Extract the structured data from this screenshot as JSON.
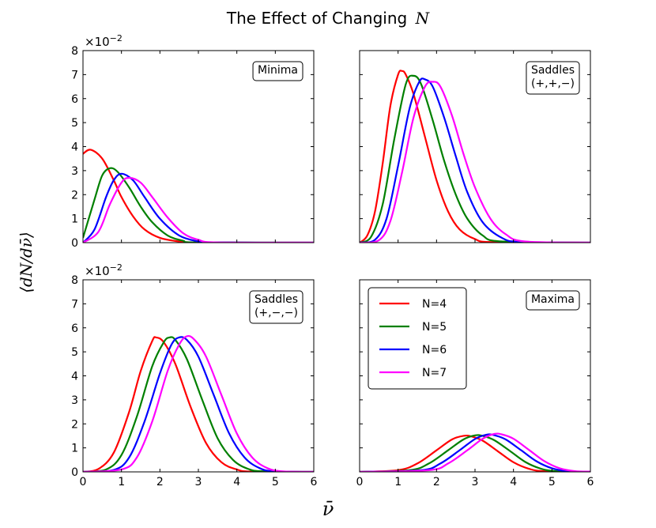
{
  "figure": {
    "title": "The Effect of Changing",
    "title_var": "N",
    "xlabel": "ν̄",
    "ylabel": "⟨dN/dν̄⟩",
    "y_exponent_base": "×10",
    "y_exponent_power": "−2"
  },
  "colors": {
    "N=4": "#ff0000",
    "N=5": "#008000",
    "N=6": "#0000ff",
    "N=7": "#ff00ff"
  },
  "chart_data": [
    {
      "type": "line",
      "panel": "top-left",
      "label": "Minima",
      "label_lines": [
        "Minima"
      ],
      "show_exponent": true,
      "xlim": [
        0,
        6
      ],
      "ylim": [
        0,
        8
      ],
      "xticks": [
        "",
        "",
        "",
        "",
        "",
        "",
        ""
      ],
      "yticks": [
        "0",
        "1",
        "2",
        "3",
        "4",
        "5",
        "6",
        "7",
        "8"
      ],
      "series": [
        {
          "name": "N=4",
          "x": [
            0,
            0.2,
            0.5,
            0.8,
            1.0,
            1.3,
            1.6,
            2.0,
            2.5,
            3.0,
            6.0
          ],
          "y": [
            3.7,
            3.87,
            3.5,
            2.6,
            1.9,
            1.1,
            0.55,
            0.2,
            0.05,
            0.01,
            0
          ]
        },
        {
          "name": "N=5",
          "x": [
            0,
            0.3,
            0.5,
            0.7,
            0.9,
            1.2,
            1.5,
            1.8,
            2.2,
            2.6,
            3.0,
            6.0
          ],
          "y": [
            0.2,
            1.8,
            2.8,
            3.1,
            2.95,
            2.3,
            1.5,
            0.85,
            0.3,
            0.08,
            0.01,
            0
          ]
        },
        {
          "name": "N=6",
          "x": [
            0,
            0.3,
            0.6,
            0.8,
            1.0,
            1.3,
            1.6,
            2.0,
            2.5,
            3.0,
            3.3,
            6.0
          ],
          "y": [
            0,
            0.55,
            1.9,
            2.6,
            2.87,
            2.6,
            1.9,
            1.0,
            0.3,
            0.05,
            0.01,
            0
          ]
        },
        {
          "name": "N=7",
          "x": [
            0,
            0.4,
            0.7,
            1.0,
            1.2,
            1.5,
            1.8,
            2.2,
            2.6,
            3.0,
            3.5,
            6.0
          ],
          "y": [
            0,
            0.45,
            1.6,
            2.5,
            2.7,
            2.5,
            1.9,
            1.05,
            0.4,
            0.12,
            0.01,
            0
          ]
        }
      ]
    },
    {
      "type": "line",
      "panel": "top-right",
      "label": "Saddles (+,+,−)",
      "label_lines": [
        "Saddles",
        "(+,+,−)"
      ],
      "show_exponent": false,
      "xlim": [
        0,
        6
      ],
      "ylim": [
        0,
        8
      ],
      "xticks": [
        "",
        "",
        "",
        "",
        "",
        "",
        ""
      ],
      "yticks": [
        "",
        "",
        "",
        "",
        "",
        "",
        "",
        "",
        ""
      ],
      "series": [
        {
          "name": "N=4",
          "x": [
            0,
            0.2,
            0.4,
            0.6,
            0.8,
            1.0,
            1.1,
            1.2,
            1.4,
            1.7,
            2.0,
            2.3,
            2.6,
            3.0,
            3.5,
            6.0
          ],
          "y": [
            0,
            0.3,
            1.3,
            3.3,
            5.7,
            7.0,
            7.15,
            7.0,
            6.2,
            4.4,
            2.6,
            1.3,
            0.55,
            0.15,
            0.02,
            0
          ]
        },
        {
          "name": "N=5",
          "x": [
            0,
            0.3,
            0.6,
            0.9,
            1.2,
            1.4,
            1.6,
            1.9,
            2.2,
            2.5,
            2.8,
            3.2,
            3.7,
            6.0
          ],
          "y": [
            0,
            0.25,
            1.6,
            4.3,
            6.6,
            6.95,
            6.6,
            5.1,
            3.4,
            2.0,
            1.0,
            0.3,
            0.05,
            0
          ]
        },
        {
          "name": "N=6",
          "x": [
            0,
            0.4,
            0.7,
            1.0,
            1.3,
            1.55,
            1.7,
            1.9,
            2.2,
            2.5,
            2.8,
            3.2,
            3.7,
            4.2,
            6.0
          ],
          "y": [
            0,
            0.12,
            1.0,
            3.2,
            5.6,
            6.7,
            6.8,
            6.5,
            5.2,
            3.6,
            2.1,
            0.85,
            0.2,
            0.03,
            0
          ]
        },
        {
          "name": "N=7",
          "x": [
            0,
            0.5,
            0.8,
            1.1,
            1.4,
            1.7,
            1.9,
            2.1,
            2.4,
            2.7,
            3.0,
            3.4,
            3.8,
            4.3,
            6.0
          ],
          "y": [
            0,
            0.1,
            0.9,
            2.9,
            5.2,
            6.5,
            6.7,
            6.5,
            5.3,
            3.7,
            2.3,
            1.0,
            0.35,
            0.05,
            0
          ]
        }
      ]
    },
    {
      "type": "line",
      "panel": "bottom-left",
      "label": "Saddles (+,−,−)",
      "label_lines": [
        "Saddles",
        "(+,−,−)"
      ],
      "show_exponent": true,
      "xlim": [
        0,
        6
      ],
      "ylim": [
        0,
        8
      ],
      "xticks": [
        "0",
        "1",
        "2",
        "3",
        "4",
        "5",
        "6"
      ],
      "yticks": [
        "0",
        "1",
        "2",
        "3",
        "4",
        "5",
        "6",
        "7",
        "8"
      ],
      "series": [
        {
          "name": "N=4",
          "x": [
            0,
            0.4,
            0.8,
            1.2,
            1.5,
            1.8,
            1.9,
            2.1,
            2.4,
            2.8,
            3.2,
            3.6,
            4.0,
            4.4,
            6.0
          ],
          "y": [
            0,
            0.12,
            0.8,
            2.5,
            4.2,
            5.45,
            5.6,
            5.4,
            4.5,
            2.7,
            1.2,
            0.4,
            0.1,
            0.01,
            0
          ]
        },
        {
          "name": "N=5",
          "x": [
            0,
            0.6,
            1.0,
            1.4,
            1.8,
            2.1,
            2.25,
            2.4,
            2.7,
            3.1,
            3.5,
            3.9,
            4.3,
            4.7,
            6.0
          ],
          "y": [
            0,
            0.1,
            0.7,
            2.3,
            4.4,
            5.4,
            5.6,
            5.5,
            4.7,
            3.0,
            1.4,
            0.5,
            0.12,
            0.02,
            0
          ]
        },
        {
          "name": "N=6",
          "x": [
            0,
            0.8,
            1.2,
            1.6,
            2.0,
            2.3,
            2.5,
            2.7,
            3.0,
            3.4,
            3.8,
            4.2,
            4.6,
            5.0,
            6.0
          ],
          "y": [
            0,
            0.08,
            0.6,
            2.1,
            4.1,
            5.3,
            5.6,
            5.5,
            4.8,
            3.2,
            1.6,
            0.6,
            0.15,
            0.02,
            0
          ]
        },
        {
          "name": "N=7",
          "x": [
            0,
            1.0,
            1.4,
            1.8,
            2.2,
            2.5,
            2.7,
            2.9,
            3.2,
            3.6,
            4.0,
            4.4,
            4.8,
            5.2,
            6.0
          ],
          "y": [
            0,
            0.1,
            0.6,
            2.1,
            4.2,
            5.3,
            5.65,
            5.5,
            4.8,
            3.2,
            1.6,
            0.6,
            0.15,
            0.02,
            0
          ]
        }
      ]
    },
    {
      "type": "line",
      "panel": "bottom-right",
      "label": "Maxima",
      "label_lines": [
        "Maxima"
      ],
      "show_exponent": false,
      "xlim": [
        0,
        6
      ],
      "ylim": [
        0,
        8
      ],
      "xticks": [
        "0",
        "1",
        "2",
        "3",
        "4",
        "5",
        "6"
      ],
      "yticks": [
        "",
        "",
        "",
        "",
        "",
        "",
        "",
        "",
        ""
      ],
      "series": [
        {
          "name": "N=4",
          "x": [
            0,
            1.0,
            1.5,
            2.0,
            2.4,
            2.7,
            2.9,
            3.2,
            3.6,
            4.0,
            4.4,
            4.8,
            6.0
          ],
          "y": [
            0,
            0.07,
            0.35,
            0.9,
            1.35,
            1.5,
            1.48,
            1.3,
            0.85,
            0.4,
            0.13,
            0.03,
            0
          ]
        },
        {
          "name": "N=5",
          "x": [
            0,
            1.3,
            1.8,
            2.3,
            2.7,
            3.0,
            3.2,
            3.5,
            3.9,
            4.3,
            4.7,
            5.1,
            6.0
          ],
          "y": [
            0,
            0.07,
            0.35,
            0.9,
            1.35,
            1.52,
            1.5,
            1.32,
            0.88,
            0.42,
            0.14,
            0.03,
            0
          ]
        },
        {
          "name": "N=6",
          "x": [
            0,
            1.6,
            2.1,
            2.6,
            3.0,
            3.3,
            3.5,
            3.8,
            4.2,
            4.6,
            5.0,
            5.4,
            6.0
          ],
          "y": [
            0,
            0.07,
            0.35,
            0.9,
            1.37,
            1.55,
            1.53,
            1.35,
            0.9,
            0.44,
            0.15,
            0.03,
            0
          ]
        },
        {
          "name": "N=7",
          "x": [
            0,
            1.8,
            2.3,
            2.8,
            3.2,
            3.5,
            3.7,
            4.0,
            4.4,
            4.8,
            5.2,
            5.6,
            6.0
          ],
          "y": [
            0,
            0.07,
            0.35,
            0.9,
            1.38,
            1.58,
            1.56,
            1.38,
            0.92,
            0.45,
            0.15,
            0.03,
            0.01
          ]
        }
      ]
    }
  ],
  "legend": {
    "entries": [
      {
        "label": "N=4",
        "color": "#ff0000"
      },
      {
        "label": "N=5",
        "color": "#008000"
      },
      {
        "label": "N=6",
        "color": "#0000ff"
      },
      {
        "label": "N=7",
        "color": "#ff00ff"
      }
    ]
  }
}
